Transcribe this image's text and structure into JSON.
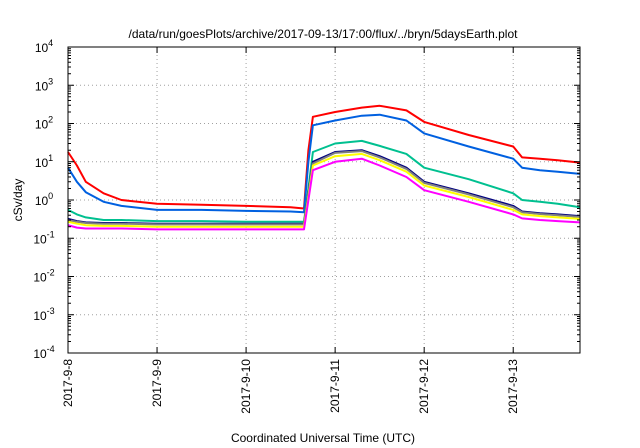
{
  "chart_data": {
    "type": "line",
    "title": "/data/run/goesPlots/archive/2017-09-13/17:00/flux/../bryn/5daysEarth.plot",
    "xlabel": "Coordinated Universal Time (UTC)",
    "ylabel": "cSv/day",
    "x_tick_labels": [
      "2017-9-8",
      "2017-9-9",
      "2017-9-10",
      "2017-9-11",
      "2017-9-12",
      "2017-9-13"
    ],
    "x_range_days_after_2017_9_8": [
      0,
      5.75
    ],
    "y_scale": "log",
    "y_tick_labels": [
      {
        "base": "10",
        "exp": "4"
      },
      {
        "base": "10",
        "exp": "3"
      },
      {
        "base": "10",
        "exp": "2"
      },
      {
        "base": "10",
        "exp": "1"
      },
      {
        "base": "10",
        "exp": "0"
      },
      {
        "base": "10",
        "exp": "-1"
      },
      {
        "base": "10",
        "exp": "-2"
      },
      {
        "base": "10",
        "exp": "-3"
      },
      {
        "base": "10",
        "exp": "-4"
      }
    ],
    "ylim": [
      0.0001,
      10000
    ],
    "grid": true,
    "x": [
      "2017-09-08 00:00",
      "2017-09-08 02:24",
      "2017-09-08 04:48",
      "2017-09-08 09:36",
      "2017-09-08 14:24",
      "2017-09-09 00:00",
      "2017-09-09 12:00",
      "2017-09-10 00:00",
      "2017-09-10 12:00",
      "2017-09-10 15:36",
      "2017-09-10 16:48",
      "2017-09-10 18:00",
      "2017-09-11 00:00",
      "2017-09-11 07:12",
      "2017-09-11 12:00",
      "2017-09-11 19:12",
      "2017-09-12 00:00",
      "2017-09-12 12:00",
      "2017-09-13 00:00",
      "2017-09-13 02:24",
      "2017-09-13 07:12",
      "2017-09-13 12:00",
      "2017-09-13 18:00"
    ],
    "series": [
      {
        "color": "#ff0000",
        "values": [
          18,
          8,
          3,
          1.5,
          1.0,
          0.8,
          0.75,
          0.7,
          0.65,
          0.6,
          20,
          150,
          200,
          260,
          290,
          220,
          110,
          50,
          25,
          13,
          12,
          11,
          9.5
        ]
      },
      {
        "color": "#0060e0",
        "values": [
          7,
          3,
          1.6,
          0.9,
          0.7,
          0.55,
          0.55,
          0.52,
          0.5,
          0.48,
          10,
          90,
          120,
          160,
          170,
          120,
          55,
          25,
          12,
          7,
          6,
          5.5,
          4.8
        ]
      },
      {
        "color": "#00c090",
        "values": [
          0.55,
          0.42,
          0.35,
          0.3,
          0.3,
          0.28,
          0.28,
          0.27,
          0.27,
          0.27,
          2,
          18,
          30,
          35,
          26,
          16,
          7,
          3.5,
          1.5,
          1.0,
          0.9,
          0.8,
          0.65
        ]
      },
      {
        "color": "#000080",
        "values": [
          0.32,
          0.28,
          0.26,
          0.25,
          0.25,
          0.24,
          0.24,
          0.24,
          0.24,
          0.24,
          1.5,
          10,
          18,
          20,
          14,
          7,
          3,
          1.5,
          0.7,
          0.5,
          0.45,
          0.42,
          0.38
        ]
      },
      {
        "color": "#808080",
        "values": [
          0.3,
          0.27,
          0.25,
          0.24,
          0.24,
          0.23,
          0.23,
          0.23,
          0.23,
          0.23,
          1.4,
          9,
          17,
          19,
          13,
          6.5,
          2.8,
          1.4,
          0.65,
          0.48,
          0.43,
          0.4,
          0.36
        ]
      },
      {
        "color": "#ffff00",
        "values": [
          0.27,
          0.24,
          0.22,
          0.21,
          0.21,
          0.2,
          0.2,
          0.2,
          0.2,
          0.2,
          1.2,
          8,
          14,
          16,
          11,
          5.5,
          2.4,
          1.2,
          0.55,
          0.42,
          0.38,
          0.35,
          0.32
        ]
      },
      {
        "color": "#ff00ff",
        "values": [
          0.22,
          0.19,
          0.18,
          0.18,
          0.18,
          0.17,
          0.17,
          0.17,
          0.17,
          0.17,
          1.0,
          6,
          10,
          12,
          8,
          4,
          1.8,
          0.9,
          0.42,
          0.33,
          0.3,
          0.28,
          0.26
        ]
      }
    ]
  }
}
